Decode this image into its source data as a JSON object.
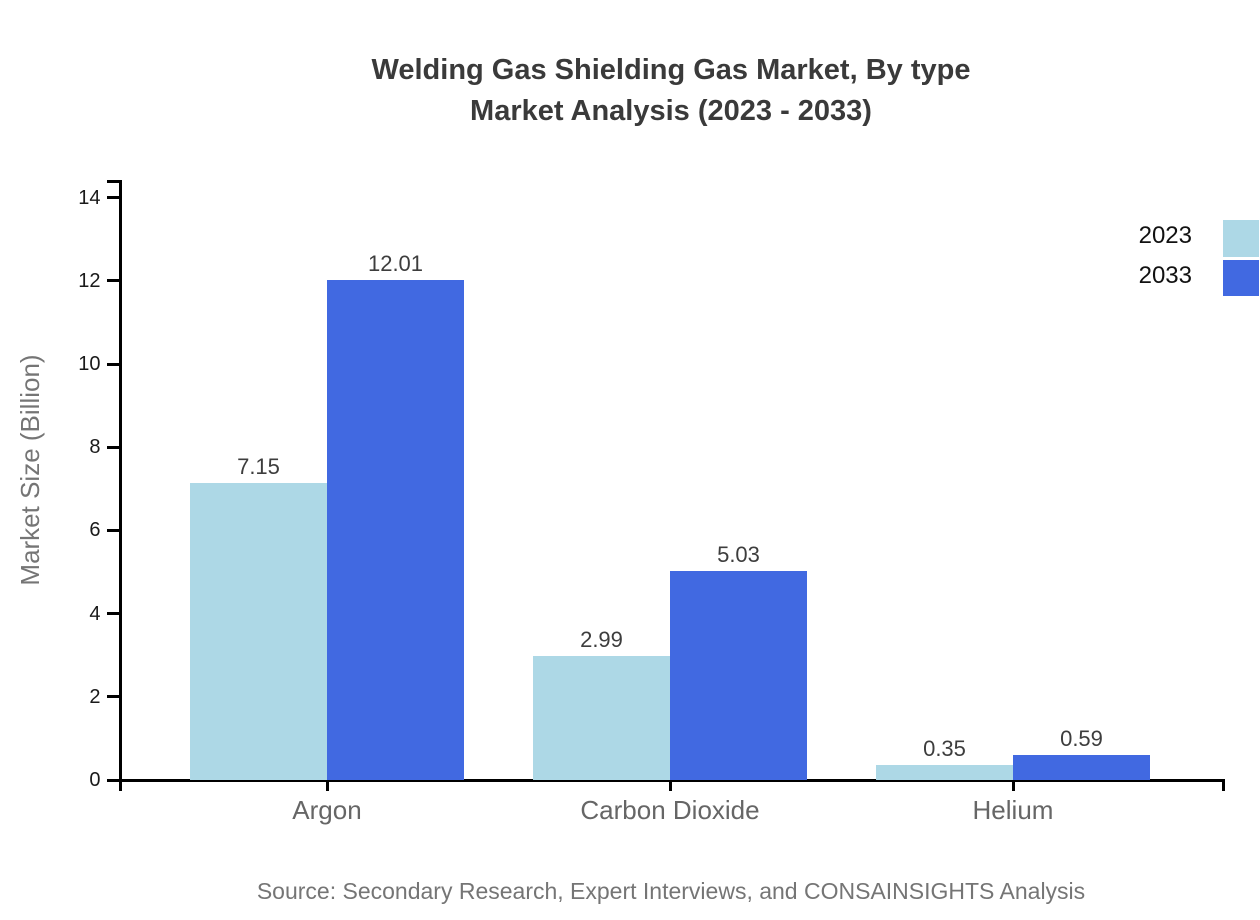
{
  "title": {
    "line1": "Welding Gas Shielding Gas Market, By type",
    "line2": "Market Analysis (2023 - 2033)"
  },
  "source_note": "Source: Secondary Research, Expert Interviews, and CONSAINSIGHTS Analysis",
  "colors": {
    "series_2023": "#add8e6",
    "series_2033": "#4169e1",
    "axis": "#000000",
    "title_text": "#3a3a3a",
    "muted_text": "#757575",
    "category_text": "#666666",
    "value_label_text": "#3d3d3d",
    "background": "#ffffff"
  },
  "legend": {
    "items": [
      {
        "label": "2023",
        "color": "#add8e6"
      },
      {
        "label": "2033",
        "color": "#4169e1"
      }
    ]
  },
  "chart_data": {
    "type": "bar",
    "title": "Welding Gas Shielding Gas Market, By type Market Analysis (2023 - 2033)",
    "categories": [
      "Argon",
      "Carbon Dioxide",
      "Helium"
    ],
    "series": [
      {
        "name": "2023",
        "color": "#add8e6",
        "values": [
          7.15,
          2.99,
          0.35
        ]
      },
      {
        "name": "2033",
        "color": "#4169e1",
        "values": [
          12.01,
          5.03,
          0.59
        ]
      }
    ],
    "xlabel": "",
    "ylabel": "Market Size (Billion)",
    "ylim": [
      0,
      14
    ],
    "yticks": [
      0,
      2,
      4,
      6,
      8,
      10,
      12,
      14
    ],
    "grid": false,
    "legend_position": "top-right",
    "value_labels": true,
    "value_label_format": "2-decimals"
  }
}
